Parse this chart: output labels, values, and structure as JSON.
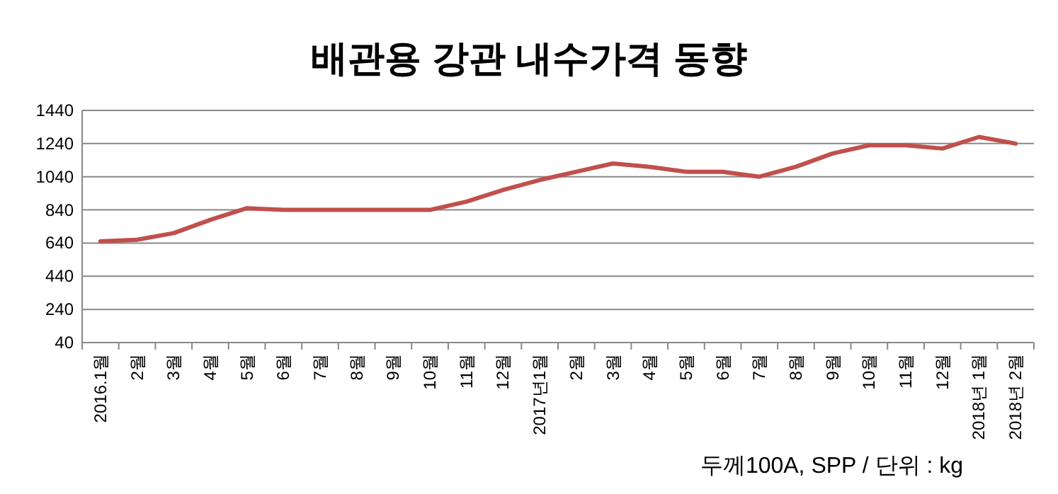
{
  "chart_data": {
    "type": "line",
    "title": "배관용 강관 내수가격 동향",
    "categories": [
      "2016.1월",
      "2월",
      "3월",
      "4월",
      "5월",
      "6월",
      "7월",
      "8월",
      "9월",
      "10월",
      "11월",
      "12월",
      "2017년1월",
      "2월",
      "3월",
      "4월",
      "5월",
      "6월",
      "7월",
      "8월",
      "9월",
      "10월",
      "11월",
      "12월",
      "2018년 1월",
      "2018년 2월"
    ],
    "series": [
      {
        "color": "#c0504d",
        "values": [
          650,
          660,
          700,
          780,
          850,
          840,
          840,
          840,
          840,
          840,
          890,
          960,
          1020,
          1070,
          1120,
          1100,
          1070,
          1070,
          1040,
          1100,
          1180,
          1230,
          1230,
          1210,
          1280,
          1240
        ]
      }
    ],
    "ylim": [
      40,
      1440
    ],
    "yticks": [
      40,
      240,
      440,
      640,
      840,
      1040,
      1240,
      1440
    ],
    "grid": "y",
    "marker": "none",
    "line_style": "solid",
    "annotations": [
      "두께100A, SPP / 단위 : kg"
    ]
  }
}
